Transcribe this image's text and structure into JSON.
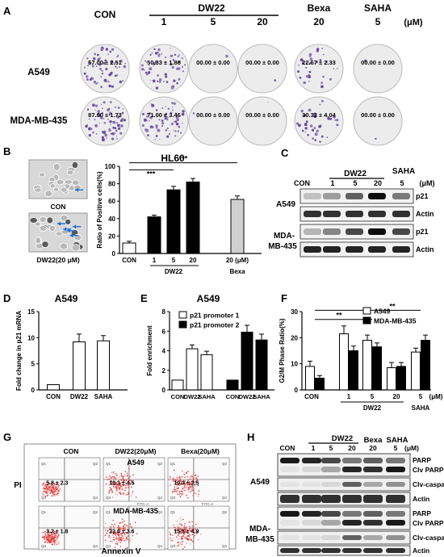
{
  "panels": {
    "A": {
      "letter": "A",
      "col_headers": [
        "CON",
        "1",
        "5",
        "20",
        "20",
        "5"
      ],
      "group_labels": {
        "dw22": "DW22",
        "bexa": "Bexa",
        "saha": "SAHA",
        "unit": "(μM)"
      },
      "row_labels": [
        "A549",
        "MDA-MB-435"
      ],
      "values": [
        [
          "57.00 ± 2.51",
          "50.33 ± 1.86",
          "00.00 ± 0.00",
          "00.00 ± 0.00",
          "22.67 ± 2.33",
          "00.00 ± 0.00"
        ],
        [
          "87.00 ± 1.73",
          "71.00 ± 3.46",
          "00.00 ± 0.00",
          "00.00 ± 0.00",
          "30.33 ± 4.04",
          "00.00 ± 0.00"
        ]
      ],
      "colony_density": [
        [
          0.9,
          0.85,
          0.02,
          0.02,
          0.45,
          0.02
        ],
        [
          1.0,
          0.95,
          0.02,
          0.02,
          0.5,
          0.02
        ]
      ]
    },
    "B": {
      "letter": "B",
      "image_labels": [
        "CON",
        "DW22(20 μM)"
      ],
      "chart": {
        "title": "HL60",
        "ylabel": "Ratio of Positive cells(%)",
        "xlabel_group": "DW22",
        "unit_label": "(μM)"
      }
    },
    "C": {
      "letter": "C",
      "header": {
        "con": "CON",
        "dw22": "DW22",
        "saha": "SAHA",
        "lanes": [
          "1",
          "5",
          "20",
          "5"
        ],
        "unit": "(μM)"
      },
      "rows": [
        {
          "cell": "A549",
          "bands": [
            "p21",
            "Actin"
          ]
        },
        {
          "cell": "MDA-MB-435",
          "bands": [
            "p21",
            "Actin"
          ]
        }
      ],
      "intensity": {
        "A549_p21": [
          0.2,
          0.35,
          0.6,
          0.95,
          0.5
        ],
        "A549_Actin": [
          0.8,
          0.8,
          0.8,
          0.8,
          0.8
        ],
        "MDA_p21": [
          0.25,
          0.45,
          0.7,
          0.95,
          0.7
        ],
        "MDA_Actin": [
          0.85,
          0.85,
          0.85,
          0.85,
          0.85
        ]
      }
    },
    "D": {
      "letter": "D",
      "chart": {
        "title": "A549",
        "ylabel": "Fold change in p21 mRNA"
      }
    },
    "E": {
      "letter": "E",
      "chart": {
        "title": "A549",
        "ylabel": "Fold enrichment"
      }
    },
    "F": {
      "letter": "F",
      "chart": {
        "ylabel": "G2/M Phase Ratio(%)",
        "xlabel_group": "DW22",
        "unit_label": "(μM)"
      }
    },
    "G": {
      "letter": "G",
      "col_headers": [
        "CON",
        "DW22(20μM)",
        "Bexa(20μM)"
      ],
      "row_labels": [
        "A549",
        "MDA-MB-435"
      ],
      "values": [
        [
          "5.8 ± 2.3",
          "10.3 ± 4.5",
          "10.3 ± 2.5"
        ],
        [
          "3.2 ± 1.8",
          "22.0 ± 3.6",
          "15.5 ± 4.9"
        ]
      ],
      "axis_y": "PI",
      "axis_x": "Annexin V",
      "quadrant_labels": [
        "Q1",
        "Q2",
        "Q3",
        "Q4"
      ],
      "fitc_label": "FITC-A"
    },
    "H": {
      "letter": "H",
      "header": {
        "con": "CON",
        "dw22": "DW22",
        "bexa": "Bexa",
        "saha": "SAHA",
        "lanes": [
          "1",
          "5",
          "20",
          "20",
          "5"
        ],
        "unit": "(μM)"
      },
      "rows": [
        {
          "cell": "A549",
          "bands": [
            "PARP",
            "Clv PARP",
            "Clv-caspase-3",
            "Actin"
          ]
        },
        {
          "cell": "MDA-MB-435",
          "bands": [
            "PARP",
            "Clv PARP",
            "Clv-caspase-3",
            "Actin"
          ]
        }
      ]
    }
  },
  "chart_data": [
    {
      "type": "bar",
      "panel": "B",
      "title": "HL60",
      "ylabel": "Ratio of Positive cells(%)",
      "categories": [
        "CON",
        "1",
        "5",
        "20",
        "20 (μM)"
      ],
      "category_group_labels": [
        "",
        "DW22",
        "DW22",
        "DW22",
        "Bexa"
      ],
      "values": [
        12,
        42,
        73,
        82,
        62
      ],
      "errors": [
        2,
        2,
        4,
        4,
        4
      ],
      "ylim": [
        0,
        100
      ],
      "yticks": [
        0,
        20,
        40,
        60,
        80,
        100
      ],
      "significance": [
        {
          "from": "CON",
          "to": "5",
          "label": "***"
        },
        {
          "from": "CON",
          "to": "20 (μM)",
          "label": "***"
        }
      ],
      "colors": [
        "#ffffff",
        "#000000",
        "#000000",
        "#000000",
        "#d0d0d0"
      ]
    },
    {
      "type": "bar",
      "panel": "D",
      "title": "A549",
      "ylabel": "Fold change in p21 mRNA",
      "categories": [
        "CON",
        "DW22",
        "SAHA"
      ],
      "values": [
        1.0,
        9.2,
        9.4
      ],
      "errors": [
        0,
        1.5,
        1.0
      ],
      "ylim": [
        0,
        15
      ],
      "yticks": [
        0,
        5,
        10,
        15
      ]
    },
    {
      "type": "bar",
      "panel": "E",
      "title": "A549",
      "ylabel": "Fold enrichment",
      "categories": [
        "CON",
        "DW22",
        "SAHA",
        "CON",
        "DW22",
        "SAHA"
      ],
      "series": [
        {
          "name": "p21 promoter 1",
          "values": [
            1.0,
            4.2,
            3.6,
            null,
            null,
            null
          ]
        },
        {
          "name": "p21 promoter 2",
          "values": [
            null,
            null,
            null,
            1.0,
            5.9,
            5.1
          ]
        }
      ],
      "errors": [
        0,
        0.4,
        0.35,
        0,
        0.7,
        0.6
      ],
      "ylim": [
        0,
        8
      ],
      "yticks": [
        0,
        2,
        4,
        6,
        8
      ]
    },
    {
      "type": "bar",
      "panel": "F",
      "ylabel": "G2/M Phase Ratio(%)",
      "categories": [
        "CON",
        "1",
        "5",
        "20",
        "5"
      ],
      "category_group_labels": [
        "",
        "DW22",
        "DW22",
        "DW22",
        "SAHA"
      ],
      "series": [
        {
          "name": "A549",
          "values": [
            9.0,
            21.5,
            19.0,
            8.5,
            14.5
          ]
        },
        {
          "name": "MDA-MB-435",
          "values": [
            4.5,
            15.0,
            16.5,
            9.0,
            19.0
          ]
        }
      ],
      "errors_series": [
        [
          2,
          3,
          2,
          2,
          1.5
        ],
        [
          1,
          1.8,
          1.5,
          1.5,
          2
        ]
      ],
      "ylim": [
        0,
        30
      ],
      "yticks": [
        0,
        10,
        20,
        30
      ],
      "significance": [
        {
          "from": "CON",
          "to": "5",
          "label": "**"
        },
        {
          "from": "CON",
          "to": "5 (SAHA)",
          "label": "**"
        }
      ]
    }
  ]
}
